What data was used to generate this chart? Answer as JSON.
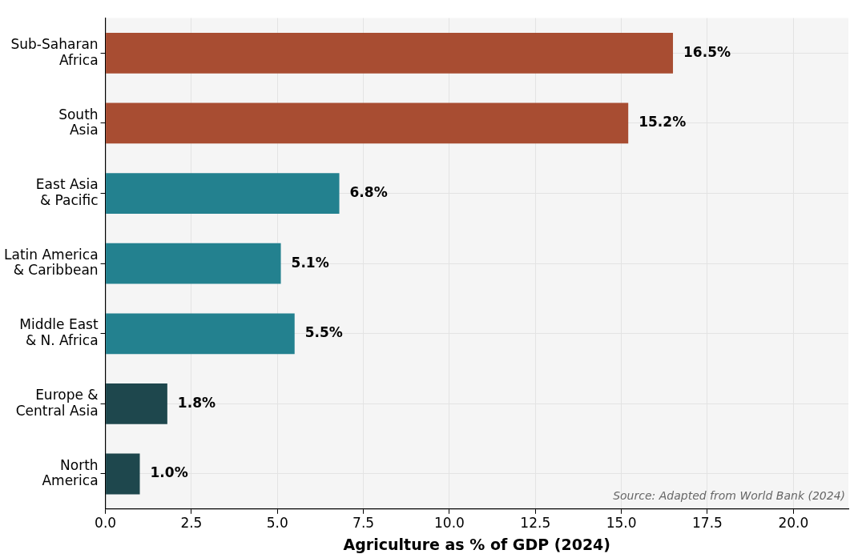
{
  "chart_data": {
    "type": "bar",
    "orientation": "horizontal",
    "xlabel": "Agriculture as % of GDP (2024)",
    "categories": [
      "Sub-Saharan\nAfrica",
      "South\nAsia",
      "East Asia\n& Pacific",
      "Latin America\n& Caribbean",
      "Middle East\n& N. Africa",
      "Europe &\nCentral Asia",
      "North\nAmerica"
    ],
    "values": [
      16.5,
      15.2,
      6.8,
      5.1,
      5.5,
      1.8,
      1.0
    ],
    "colors": [
      "#a84d32",
      "#a84d32",
      "#23818f",
      "#23818f",
      "#23818f",
      "#1e474d",
      "#1e474d"
    ],
    "value_labels": [
      "16.5%",
      "15.2%",
      "6.8%",
      "5.1%",
      "5.5%",
      "1.8%",
      "1.0%"
    ],
    "xlim": [
      0,
      21.6
    ],
    "xticks": [
      {
        "value": 0,
        "label": "0.0"
      },
      2.5,
      {
        "value": 5,
        "label": "5.0"
      },
      7.5,
      {
        "value": 10,
        "label": "10.0"
      },
      12.5,
      {
        "value": 15,
        "label": "15.0"
      },
      17.5,
      {
        "value": 20,
        "label": "20.0"
      }
    ],
    "grid": true,
    "annotations": [
      "Source: Adapted from World Bank (2024)"
    ]
  }
}
